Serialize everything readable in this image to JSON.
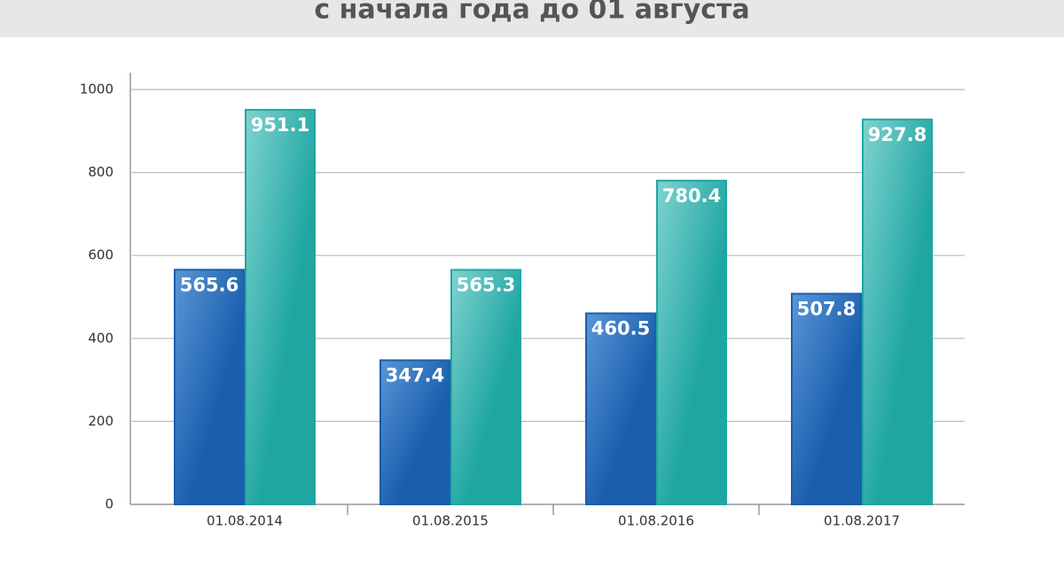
{
  "chart_data": {
    "type": "bar",
    "title": "с начала года до 01 августа",
    "categories": [
      "01.08.2014",
      "01.08.2015",
      "01.08.2016",
      "01.08.2017"
    ],
    "series": [
      {
        "color": "#1a5fae",
        "values": [
          565.6,
          347.4,
          460.5,
          507.8
        ]
      },
      {
        "color": "#1fa6a3",
        "values": [
          951.1,
          565.3,
          780.4,
          927.8
        ]
      }
    ],
    "ylim": [
      0,
      1000
    ],
    "yticks": [
      0,
      200,
      400,
      600,
      800,
      1000
    ],
    "grid": true
  }
}
